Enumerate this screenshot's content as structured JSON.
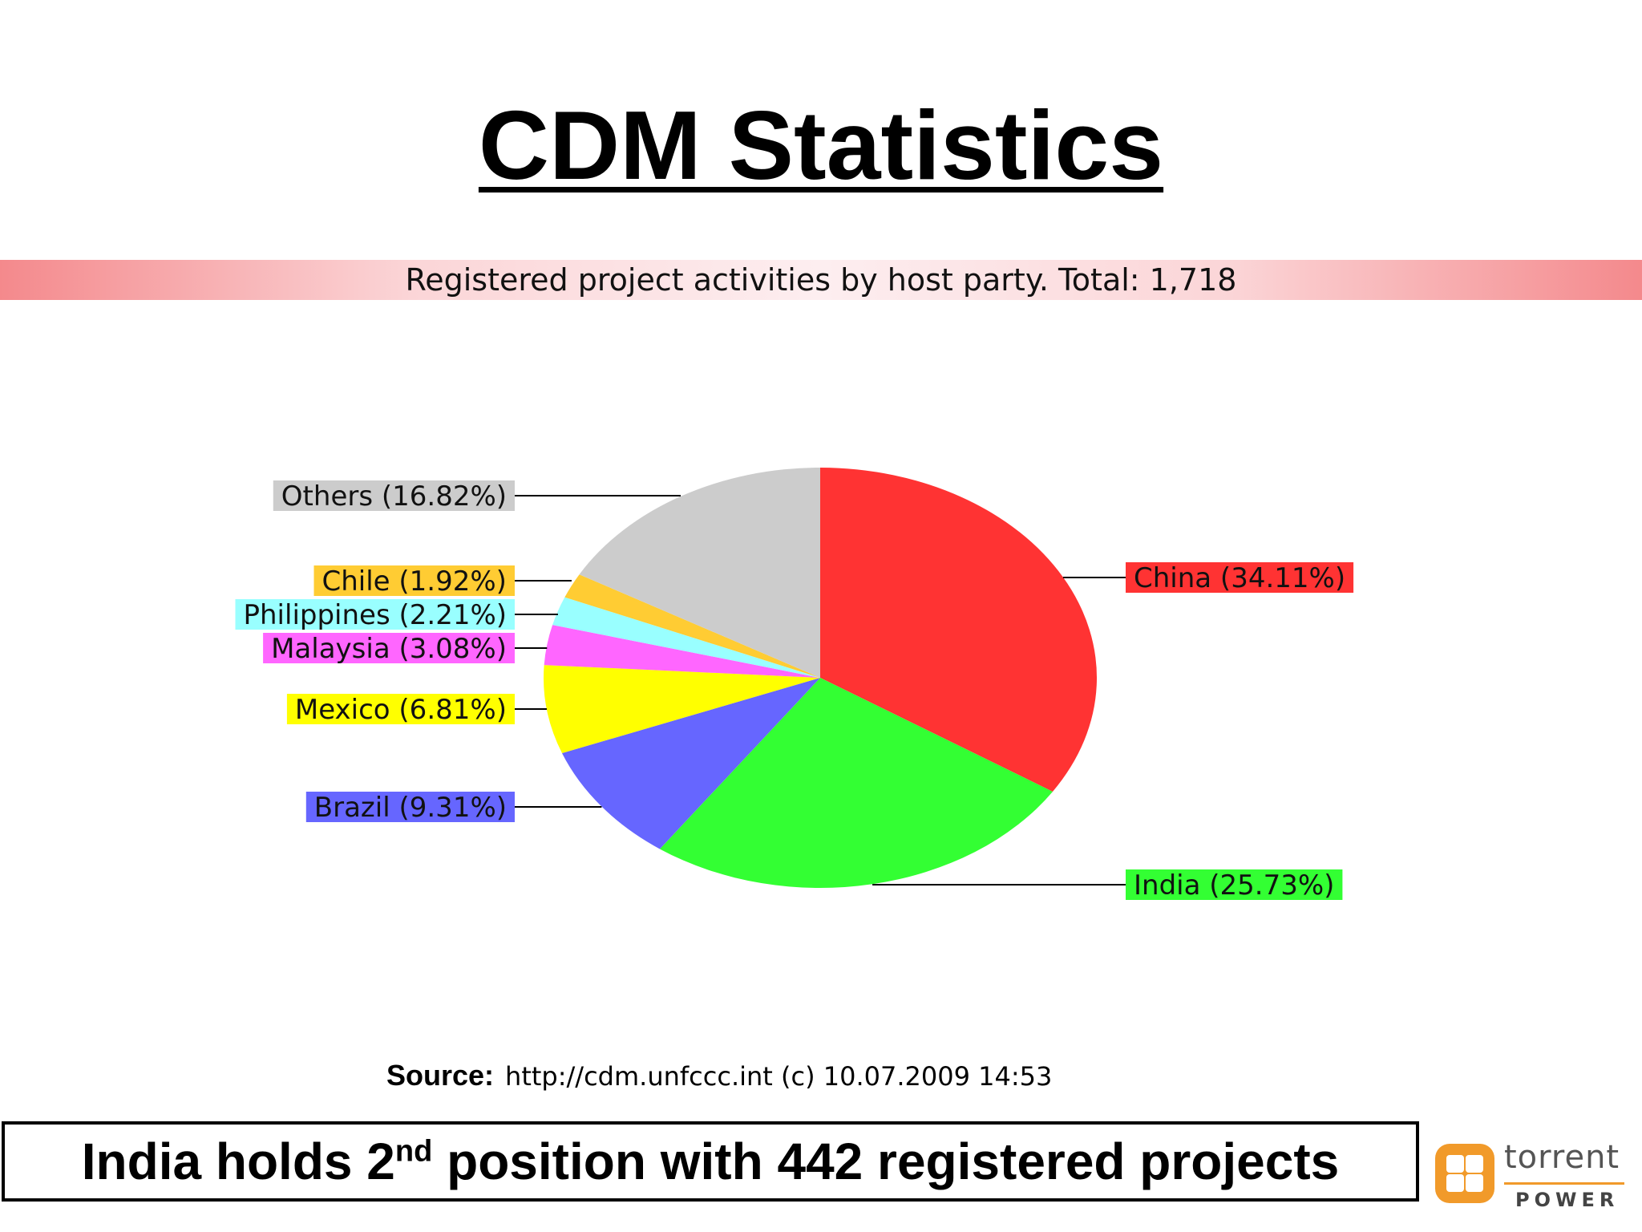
{
  "slide": {
    "title": "CDM Statistics",
    "source_label": "Source:",
    "source_text": "http://cdm.unfccc.int (c) 10.07.2009 14:53",
    "footer": {
      "pre": "India holds 2",
      "sup": "nd",
      "post": " position with 442 registered projects"
    }
  },
  "logo": {
    "word": "torrent",
    "sub": "POWER",
    "color": "#f19a2a"
  },
  "chart_data": {
    "type": "pie",
    "title": "Registered project activities by host party. Total: 1,718",
    "slices": [
      {
        "label": "China (34.11%)",
        "value": 34.11,
        "color": "#ff3333"
      },
      {
        "label": "India (25.73%)",
        "value": 25.73,
        "color": "#33ff33"
      },
      {
        "label": "Brazil (9.31%)",
        "value": 9.31,
        "color": "#6666ff"
      },
      {
        "label": "Mexico (6.81%)",
        "value": 6.81,
        "color": "#ffff00"
      },
      {
        "label": "Malaysia (3.08%)",
        "value": 3.08,
        "color": "#ff66ff"
      },
      {
        "label": "Philippines (2.21%)",
        "value": 2.21,
        "color": "#99ffff"
      },
      {
        "label": "Chile (1.92%)",
        "value": 1.92,
        "color": "#ffcc33"
      },
      {
        "label": "Others (16.82%)",
        "value": 16.82,
        "color": "#cccccc"
      }
    ]
  }
}
